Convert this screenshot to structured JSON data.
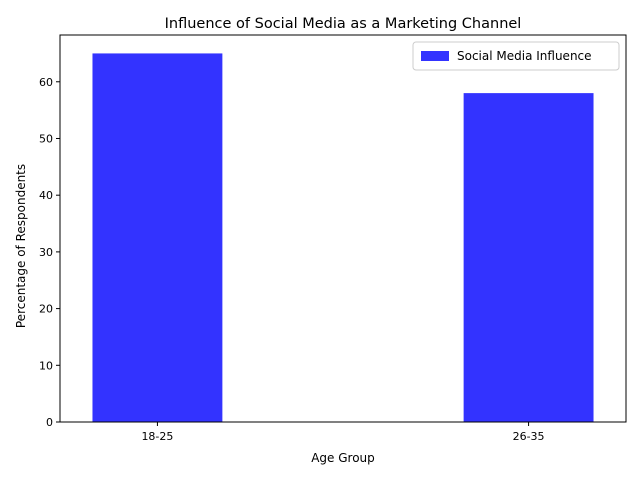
{
  "chart_data": {
    "type": "bar",
    "title": "Influence of Social Media as a Marketing Channel",
    "xlabel": "Age Group",
    "ylabel": "Percentage of Respondents",
    "categories": [
      "18-25",
      "26-35"
    ],
    "series": [
      {
        "name": "Social Media Influence",
        "values": [
          65,
          58
        ],
        "color": "#3333ff"
      }
    ],
    "ylim": [
      0,
      68.25
    ],
    "yticks": [
      0,
      10,
      20,
      30,
      40,
      50,
      60
    ],
    "grid": false,
    "legend": "top-right"
  }
}
